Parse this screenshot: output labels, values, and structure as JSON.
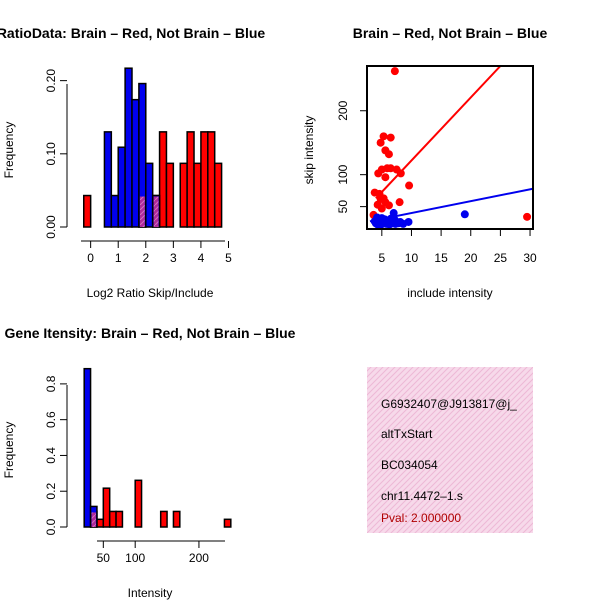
{
  "colors": {
    "red": "#ff0000",
    "blue": "#0000ee",
    "overlap": "#a020a0",
    "info_bg": "#f7d9ea"
  },
  "chart_data": [
    {
      "id": "ratio",
      "type": "bar",
      "title": "RatioData: Brain – Red, Not Brain – Blue",
      "xlabel": "Log2 Ratio Skip/Include",
      "ylabel": "Frequency",
      "xlim": [
        -0.35,
        5.2
      ],
      "ylim": [
        0,
        0.22
      ],
      "xticks": [
        0,
        1,
        2,
        3,
        4,
        5
      ],
      "yticks": [
        0.0,
        0.1,
        0.2
      ],
      "ytick_labels": [
        "0.00",
        "0.10",
        "0.20"
      ],
      "bin_width": 0.25,
      "series": [
        {
          "name": "Not Brain",
          "color": "#0000ee",
          "bins": [
            {
              "x0": 0.5,
              "v": 0.13
            },
            {
              "x0": 0.75,
              "v": 0.043
            },
            {
              "x0": 1.0,
              "v": 0.109
            },
            {
              "x0": 1.25,
              "v": 0.217
            },
            {
              "x0": 1.5,
              "v": 0.174
            },
            {
              "x0": 1.75,
              "v": 0.196
            },
            {
              "x0": 2.0,
              "v": 0.087
            },
            {
              "x0": 2.25,
              "v": 0.043
            }
          ]
        },
        {
          "name": "Brain",
          "color": "#ff0000",
          "bins": [
            {
              "x0": -0.25,
              "v": 0.043
            },
            {
              "x0": 1.75,
              "v": 0.043
            },
            {
              "x0": 2.25,
              "v": 0.043
            },
            {
              "x0": 2.5,
              "v": 0.13
            },
            {
              "x0": 2.75,
              "v": 0.087
            },
            {
              "x0": 3.25,
              "v": 0.087
            },
            {
              "x0": 3.5,
              "v": 0.13
            },
            {
              "x0": 3.75,
              "v": 0.087
            },
            {
              "x0": 4.0,
              "v": 0.13
            },
            {
              "x0": 4.25,
              "v": 0.13
            },
            {
              "x0": 4.5,
              "v": 0.087
            }
          ]
        }
      ]
    },
    {
      "id": "scatter",
      "type": "scatter",
      "title": "Brain – Red, Not Brain – Blue",
      "xlabel": "include intensity",
      "ylabel": "skip intensity",
      "xlim": [
        2.5,
        30.5
      ],
      "ylim": [
        15,
        270
      ],
      "xticks": [
        5,
        10,
        15,
        20,
        25,
        30
      ],
      "yticks": [
        50,
        100,
        200
      ],
      "series": [
        {
          "name": "Brain",
          "color": "#ff0000",
          "points": [
            [
              7.2,
              262
            ],
            [
              4.6,
              70
            ],
            [
              5.3,
              160
            ],
            [
              4.8,
              150
            ],
            [
              6.5,
              158
            ],
            [
              5.6,
              138
            ],
            [
              6.2,
              132
            ],
            [
              5.0,
              108
            ],
            [
              5.9,
              110
            ],
            [
              6.5,
              110
            ],
            [
              7.5,
              108
            ],
            [
              4.4,
              102
            ],
            [
              8.2,
              102
            ],
            [
              5.6,
              96
            ],
            [
              9.6,
              83
            ],
            [
              3.8,
              72
            ],
            [
              5.3,
              63
            ],
            [
              4.8,
              62
            ],
            [
              5.6,
              57
            ],
            [
              8.0,
              57
            ],
            [
              4.3,
              53
            ],
            [
              6.2,
              52
            ],
            [
              5.0,
              47
            ],
            [
              3.6,
              37
            ],
            [
              29.5,
              34
            ]
          ],
          "fit": [
            [
              4.0,
              63
            ],
            [
              25.0,
              270
            ]
          ]
        },
        {
          "name": "Not Brain",
          "color": "#0000ee",
          "points": [
            [
              7.0,
              40
            ],
            [
              19.0,
              38
            ],
            [
              4.2,
              33
            ],
            [
              4.6,
              31
            ],
            [
              5.0,
              32
            ],
            [
              5.5,
              30
            ],
            [
              6.0,
              28
            ],
            [
              6.5,
              31
            ],
            [
              7.2,
              29
            ],
            [
              3.8,
              27
            ],
            [
              5.2,
              27
            ],
            [
              4.6,
              26
            ],
            [
              8.1,
              26
            ],
            [
              9.5,
              26
            ],
            [
              4.0,
              24
            ],
            [
              5.5,
              24
            ],
            [
              6.8,
              24
            ],
            [
              7.8,
              24
            ],
            [
              4.9,
              22
            ],
            [
              6.3,
              22
            ],
            [
              5.8,
              23
            ],
            [
              7.3,
              23
            ],
            [
              4.3,
              22
            ],
            [
              8.6,
              23
            ]
          ],
          "fit": [
            [
              3.0,
              27
            ],
            [
              30.5,
              78
            ]
          ]
        }
      ]
    },
    {
      "id": "intensity",
      "type": "bar",
      "title": "Gene Itensity: Brain – Red, Not Brain – Blue",
      "xlabel": "Intensity",
      "ylabel": "Frequency",
      "xlim": [
        15,
        255
      ],
      "ylim": [
        0,
        0.9
      ],
      "xticks": [
        50,
        100,
        200
      ],
      "yticks": [
        0.0,
        0.2,
        0.4,
        0.6,
        0.8
      ],
      "ytick_labels": [
        "0.0",
        "0.2",
        "0.4",
        "0.6",
        "0.8"
      ],
      "bin_width": 10,
      "series": [
        {
          "name": "Not Brain",
          "color": "#0000ee",
          "bins": [
            {
              "x0": 20,
              "v": 0.885
            },
            {
              "x0": 30,
              "v": 0.115
            }
          ]
        },
        {
          "name": "Brain",
          "color": "#ff0000",
          "bins": [
            {
              "x0": 30,
              "v": 0.087
            },
            {
              "x0": 40,
              "v": 0.043
            },
            {
              "x0": 50,
              "v": 0.217
            },
            {
              "x0": 60,
              "v": 0.087
            },
            {
              "x0": 70,
              "v": 0.087
            },
            {
              "x0": 100,
              "v": 0.261
            },
            {
              "x0": 140,
              "v": 0.087
            },
            {
              "x0": 160,
              "v": 0.087
            },
            {
              "x0": 240,
              "v": 0.043
            }
          ]
        }
      ]
    }
  ],
  "info": {
    "lines": [
      "G6932407@J913817@j_",
      "altTxStart",
      "BC034054",
      "chr11.4472–1.s"
    ],
    "pval": "Pval: 2.000000"
  }
}
